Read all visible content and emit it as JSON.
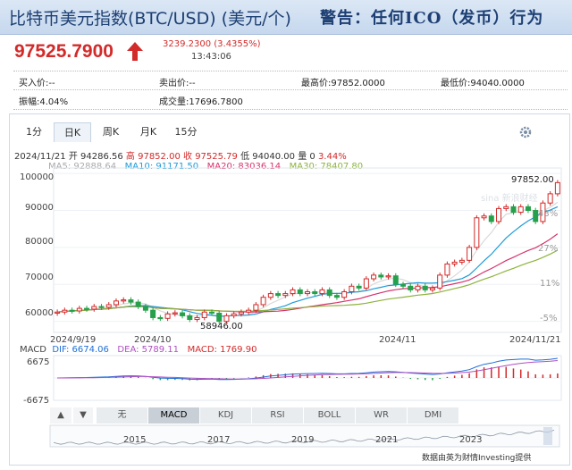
{
  "header": {
    "title": "比特币美元指数(BTC/USD) (美元/个)",
    "warning": "警告：任何ICO（发币）行为"
  },
  "quote": {
    "price": "97525.7900",
    "change": "3239.2300 (3.4355%)",
    "time": "13:43:06"
  },
  "info": {
    "bid": "买入价:--",
    "ask": "卖出价:--",
    "high": "最高价:97852.0000",
    "low": "最低价:94040.0000",
    "amplitude": "振幅:4.04%",
    "volume": "成交量:17696.7800"
  },
  "tabs": [
    "1分",
    "日K",
    "周K",
    "月K",
    "15分"
  ],
  "active_tab": "日K",
  "ohlc": {
    "date": "2024/11/21",
    "open": "开 94286.56",
    "high": "高 97852.00",
    "close": "收 97525.79",
    "low": "低 94040.00",
    "vol": "量 0",
    "pct": "3.44%"
  },
  "ma": {
    "ma5": "MA5: 92888.64",
    "ma10": "MA10: 91171.50",
    "ma20": "MA20: 83036.14",
    "ma30": "MA30: 78407.80"
  },
  "colors": {
    "ma5": "#d9d9d9",
    "ma10": "#1f9bd8",
    "ma20": "#d6336c",
    "ma30": "#8db33d",
    "up": "#d32a2a",
    "down": "#26a04a",
    "title": "#1d3f73"
  },
  "chart_labels": {
    "max_label": "97852.00",
    "min_label": "58946.00",
    "date_labels": [
      "2024/9/19",
      "2024/10",
      "2024/11",
      "2024/11/21"
    ],
    "pct_labels": [
      "43%",
      "27%",
      "11%",
      "-5%"
    ],
    "macd_line": {
      "title": "MACD",
      "dif": "DIF: 6674.06",
      "dea": "DEA: 5789.11",
      "macd": "MACD: 1769.90"
    },
    "macd_ticks": [
      "6675",
      "-6675"
    ],
    "range_years": [
      "2015",
      "2017",
      "2019",
      "2021",
      "2023"
    ]
  },
  "indicator_buttons": [
    "无",
    "MACD",
    "KDJ",
    "RSI",
    "BOLL",
    "WR",
    "DMI"
  ],
  "active_indicator": "MACD",
  "footer": "数据由英为财情Investing提供",
  "chart_data": {
    "type": "candlestick",
    "x_range": [
      "2024/9/19",
      "2024/11/21"
    ],
    "ylim": [
      57000,
      101000
    ],
    "y_ticks": [
      60000,
      70000,
      80000,
      90000,
      100000
    ],
    "closes": [
      62500,
      63000,
      62800,
      63500,
      63300,
      64000,
      63800,
      64500,
      65500,
      65800,
      65200,
      64000,
      63000,
      61000,
      60800,
      62000,
      62300,
      61500,
      60500,
      61000,
      62500,
      62200,
      60000,
      61500,
      62000,
      62500,
      63000,
      64500,
      66500,
      67500,
      67000,
      67500,
      68500,
      67500,
      68000,
      67500,
      68500,
      67000,
      66500,
      68000,
      69500,
      69000,
      71500,
      72500,
      72000,
      72300,
      70000,
      69500,
      68500,
      69500,
      68500,
      69000,
      72500,
      75500,
      76000,
      76500,
      80000,
      88000,
      88500,
      87000,
      90500,
      91000,
      89500,
      91000,
      90000,
      87000,
      92000,
      94500,
      97525
    ]
  }
}
